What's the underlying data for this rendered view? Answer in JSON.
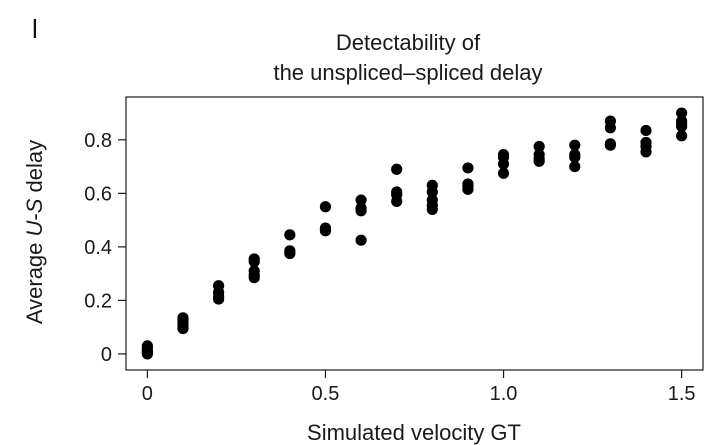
{
  "panel_label": "l",
  "chart_data": {
    "type": "scatter",
    "title_lines": [
      "Detectability of",
      "the unspliced–spliced delay"
    ],
    "xlabel": "Simulated velocity GT",
    "ylabel_parts": [
      "Average ",
      "U",
      "-",
      "S",
      " delay"
    ],
    "xlim": [
      -0.06,
      1.56
    ],
    "ylim": [
      -0.06,
      0.96
    ],
    "xticks": [
      0,
      0.5,
      1.0,
      1.5
    ],
    "xtick_labels": [
      "0",
      "0.5",
      "1.0",
      "1.5"
    ],
    "yticks": [
      0,
      0.2,
      0.4,
      0.6,
      0.8
    ],
    "ytick_labels": [
      "0",
      "0.2",
      "0.4",
      "0.6",
      "0.8"
    ],
    "grid": false,
    "marker_color": "#000000",
    "points": [
      [
        0,
        0.03
      ],
      [
        0,
        0.02
      ],
      [
        0,
        0.01
      ],
      [
        0,
        0.005
      ],
      [
        0,
        0.0
      ],
      [
        0.1,
        0.135
      ],
      [
        0.1,
        0.125
      ],
      [
        0.1,
        0.115
      ],
      [
        0.1,
        0.105
      ],
      [
        0.1,
        0.095
      ],
      [
        0.2,
        0.255
      ],
      [
        0.2,
        0.23
      ],
      [
        0.2,
        0.215
      ],
      [
        0.2,
        0.205
      ],
      [
        0.3,
        0.355
      ],
      [
        0.3,
        0.345
      ],
      [
        0.3,
        0.31
      ],
      [
        0.3,
        0.295
      ],
      [
        0.3,
        0.285
      ],
      [
        0.4,
        0.445
      ],
      [
        0.4,
        0.385
      ],
      [
        0.4,
        0.375
      ],
      [
        0.5,
        0.55
      ],
      [
        0.5,
        0.47
      ],
      [
        0.5,
        0.465
      ],
      [
        0.5,
        0.46
      ],
      [
        0.6,
        0.575
      ],
      [
        0.6,
        0.545
      ],
      [
        0.6,
        0.535
      ],
      [
        0.6,
        0.425
      ],
      [
        0.7,
        0.69
      ],
      [
        0.7,
        0.605
      ],
      [
        0.7,
        0.595
      ],
      [
        0.7,
        0.57
      ],
      [
        0.8,
        0.63
      ],
      [
        0.8,
        0.605
      ],
      [
        0.8,
        0.575
      ],
      [
        0.8,
        0.555
      ],
      [
        0.8,
        0.54
      ],
      [
        0.9,
        0.695
      ],
      [
        0.9,
        0.635
      ],
      [
        0.9,
        0.625
      ],
      [
        0.9,
        0.615
      ],
      [
        1.0,
        0.745
      ],
      [
        1.0,
        0.735
      ],
      [
        1.0,
        0.71
      ],
      [
        1.0,
        0.675
      ],
      [
        1.1,
        0.775
      ],
      [
        1.1,
        0.745
      ],
      [
        1.1,
        0.73
      ],
      [
        1.1,
        0.72
      ],
      [
        1.2,
        0.78
      ],
      [
        1.2,
        0.745
      ],
      [
        1.2,
        0.735
      ],
      [
        1.2,
        0.7
      ],
      [
        1.3,
        0.87
      ],
      [
        1.3,
        0.845
      ],
      [
        1.3,
        0.785
      ],
      [
        1.3,
        0.78
      ],
      [
        1.4,
        0.835
      ],
      [
        1.4,
        0.79
      ],
      [
        1.4,
        0.775
      ],
      [
        1.4,
        0.755
      ],
      [
        1.5,
        0.9
      ],
      [
        1.5,
        0.87
      ],
      [
        1.5,
        0.86
      ],
      [
        1.5,
        0.85
      ],
      [
        1.5,
        0.815
      ]
    ]
  }
}
